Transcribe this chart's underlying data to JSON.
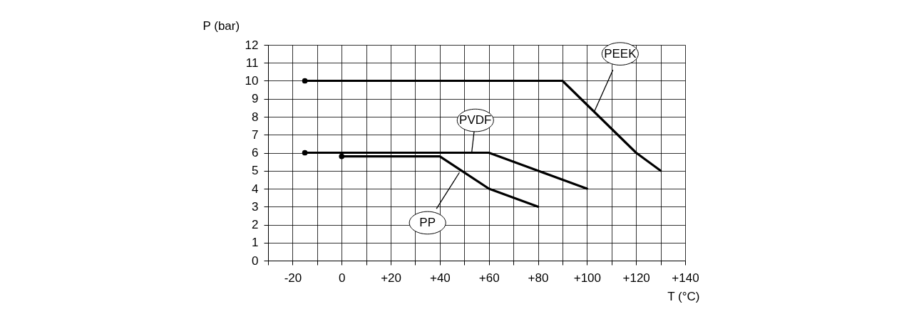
{
  "chart_data": {
    "type": "line",
    "xlabel": "T (°C)",
    "ylabel": "P (bar)",
    "xlim": [
      -30,
      140
    ],
    "xticks": [
      {
        "value": -30,
        "label": null
      },
      -20,
      {
        "value": -10,
        "label": null
      },
      0,
      {
        "value": 10,
        "label": null
      },
      {
        "value": 20,
        "label": "+20"
      },
      {
        "value": 30,
        "label": null
      },
      {
        "value": 40,
        "label": "+40"
      },
      {
        "value": 50,
        "label": null
      },
      {
        "value": 60,
        "label": "+60"
      },
      {
        "value": 70,
        "label": null
      },
      {
        "value": 80,
        "label": "+80"
      },
      {
        "value": 90,
        "label": null
      },
      {
        "value": 100,
        "label": "+100"
      },
      {
        "value": 110,
        "label": null
      },
      {
        "value": 120,
        "label": "+120"
      },
      {
        "value": 130,
        "label": null
      },
      {
        "value": 140,
        "label": "+140"
      }
    ],
    "ylim": [
      0,
      12
    ],
    "yticks": [
      0,
      1,
      2,
      3,
      4,
      5,
      6,
      7,
      8,
      9,
      10,
      11,
      12
    ],
    "grid": true,
    "line_style": "solid",
    "series": [
      {
        "color": "#000000",
        "x": [
          -15,
          90,
          120,
          130
        ],
        "values": [
          10,
          10,
          6,
          5
        ]
      },
      {
        "color": "#000000",
        "x": [
          -15,
          60,
          80,
          100
        ],
        "values": [
          6,
          6,
          5,
          4
        ]
      },
      {
        "color": "#000000",
        "x": [
          0,
          40,
          60,
          80
        ],
        "values": [
          5.8,
          5.8,
          4,
          3
        ]
      },
      {
        "type": "scatter",
        "marker": "circle",
        "color": "#000000",
        "x": [
          -15,
          -15,
          0
        ],
        "values": [
          10,
          6,
          5.8
        ]
      }
    ],
    "annotations": [
      {
        "text": "PEEK",
        "x": 103,
        "y": 8.3
      },
      {
        "text": "PVDF",
        "x": 53,
        "y": 6
      },
      {
        "text": "PP",
        "x": 48,
        "y": 4.9
      }
    ]
  }
}
